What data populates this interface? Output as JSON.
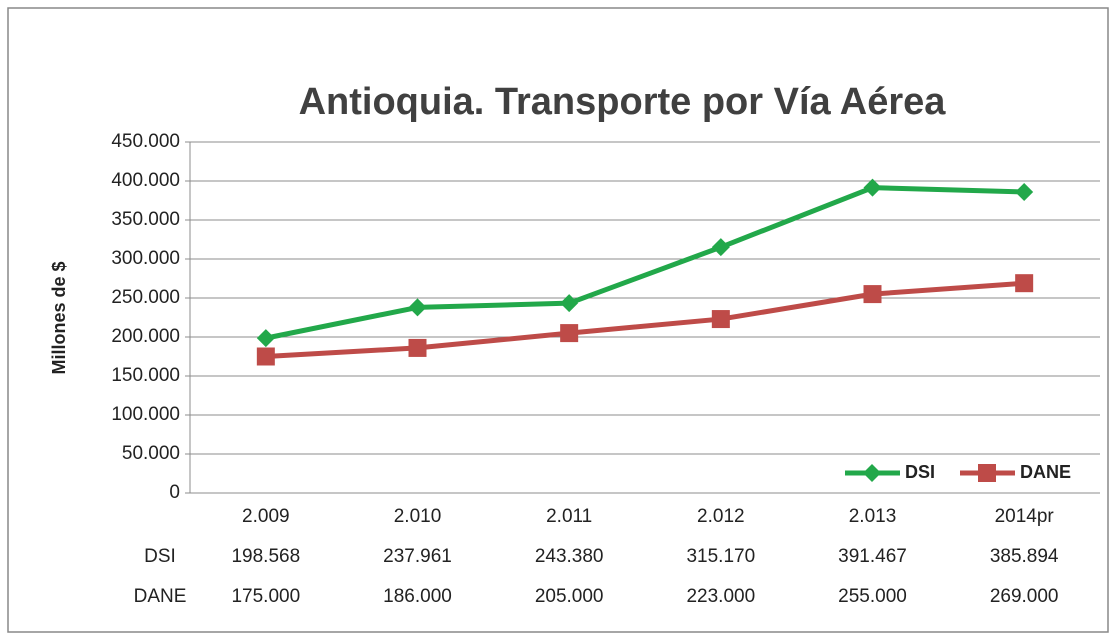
{
  "chart_data": {
    "type": "line",
    "title": "Antioquia. Transporte por Vía Aérea",
    "y_label": "Millones de $",
    "categories": [
      "2.009",
      "2.010",
      "2.011",
      "2.012",
      "2.013",
      "2014pr"
    ],
    "series": [
      {
        "name": "DSI",
        "color": "#22a84a",
        "marker": "diamond",
        "values": [
          198568,
          237961,
          243380,
          315170,
          391467,
          385894
        ],
        "value_labels": [
          "198.568",
          "237.961",
          "243.380",
          "315.170",
          "391.467",
          "385.894"
        ]
      },
      {
        "name": "DANE",
        "color": "#be4b48",
        "marker": "square",
        "values": [
          175000,
          186000,
          205000,
          223000,
          255000,
          269000
        ],
        "value_labels": [
          "175.000",
          "186.000",
          "205.000",
          "223.000",
          "255.000",
          "269.000"
        ]
      }
    ],
    "ylim": [
      0,
      450000
    ],
    "yticks": [
      0,
      {
        "value": 50000,
        "label": "50.000"
      },
      {
        "value": 100000,
        "label": "100.000"
      },
      {
        "value": 150000,
        "label": "150.000"
      },
      {
        "value": 200000,
        "label": "200.000"
      },
      {
        "value": 250000,
        "label": "250.000"
      },
      {
        "value": 300000,
        "label": "300.000"
      },
      {
        "value": 350000,
        "label": "350.000"
      },
      {
        "value": 400000,
        "label": "400.000"
      },
      {
        "value": 450000,
        "label": "450.000"
      }
    ],
    "grid": true,
    "legend": "bottom-right",
    "data_table": true
  }
}
